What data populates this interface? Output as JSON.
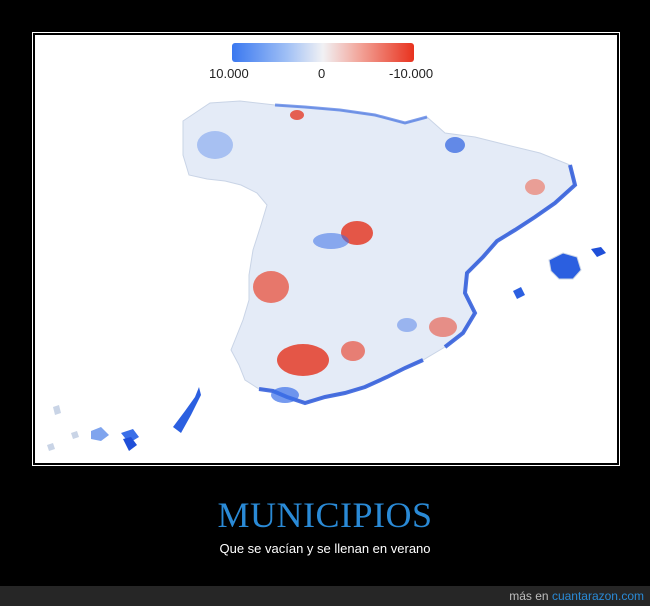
{
  "legend": {
    "left_label": "10.000",
    "mid_label": "0",
    "right_label": "-10.000",
    "colors": {
      "low": "#3a78f0",
      "mid": "#f1f1f4",
      "high": "#e8321e"
    }
  },
  "caption": {
    "title": "MUNICIPIOS",
    "subtitle": "Que se vacían y se llenan en verano"
  },
  "footer": {
    "prefix": "más en",
    "link": "cuantarazon.com"
  },
  "colors": {
    "background": "#000000",
    "title": "#2a8ad6",
    "footer_bar": "#262626"
  }
}
